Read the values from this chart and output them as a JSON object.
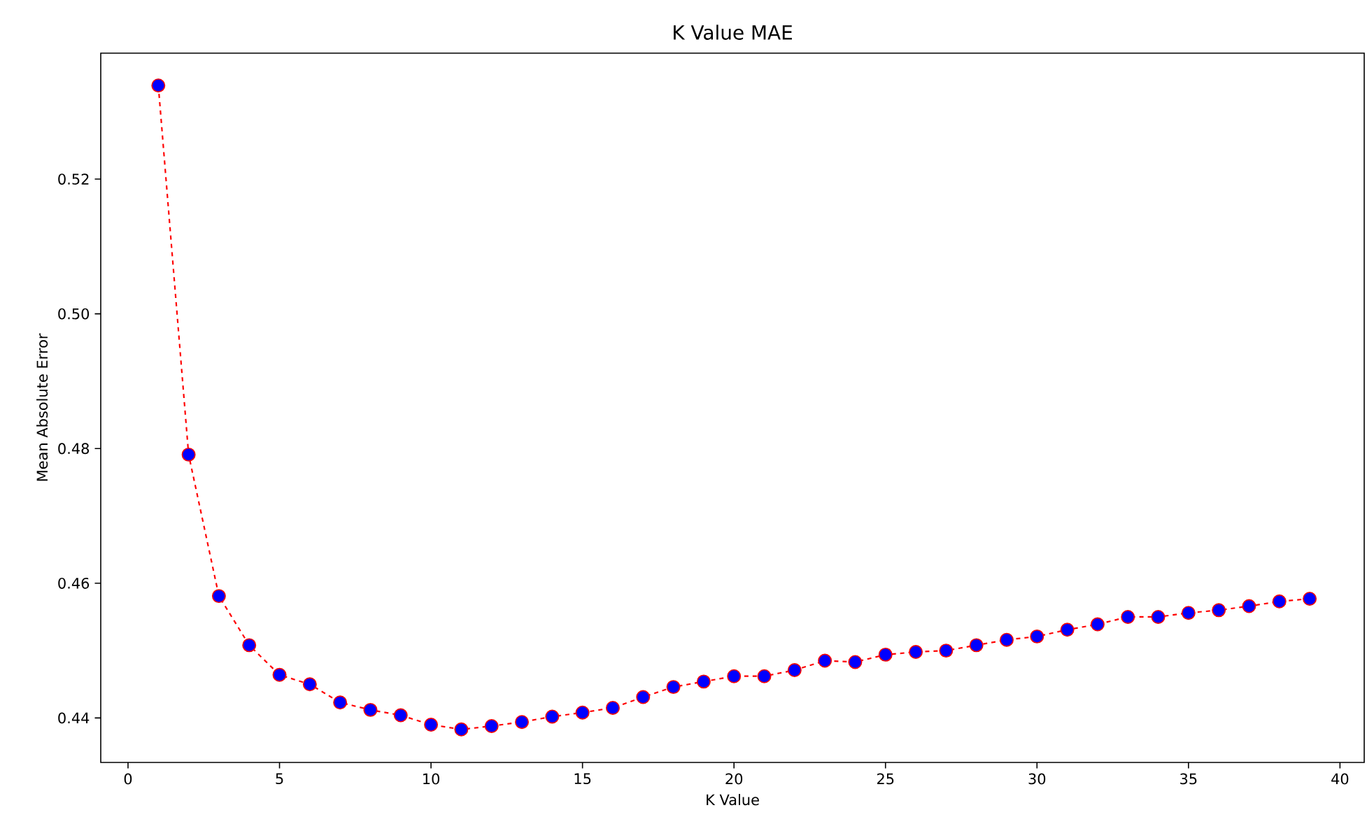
{
  "chart_data": {
    "type": "line",
    "title": "K Value MAE",
    "xlabel": "K Value",
    "ylabel": "Mean Absolute Error",
    "x": [
      1,
      2,
      3,
      4,
      5,
      6,
      7,
      8,
      9,
      10,
      11,
      12,
      13,
      14,
      15,
      16,
      17,
      18,
      19,
      20,
      21,
      22,
      23,
      24,
      25,
      26,
      27,
      28,
      29,
      30,
      31,
      32,
      33,
      34,
      35,
      36,
      37,
      38,
      39
    ],
    "series": [
      {
        "color": "#ff0000",
        "values": [
          0.5339,
          0.4791,
          0.4581,
          0.4508,
          0.4464,
          0.445,
          0.4423,
          0.4412,
          0.4404,
          0.439,
          0.4383,
          0.4388,
          0.4394,
          0.4402,
          0.4408,
          0.4415,
          0.4431,
          0.4446,
          0.4454,
          0.4462,
          0.4462,
          0.4471,
          0.4485,
          0.4483,
          0.4494,
          0.4498,
          0.45,
          0.4508,
          0.4516,
          0.4521,
          0.4531,
          0.4539,
          0.455,
          0.455,
          0.4556,
          0.456,
          0.4566,
          0.4573,
          0.4577
        ]
      }
    ],
    "xlim": [
      -0.9,
      40.8
    ],
    "ylim": [
      0.4334,
      0.5387
    ],
    "xticks": [
      0,
      5,
      10,
      15,
      20,
      25,
      30,
      35,
      40
    ],
    "yticks": [
      0.44,
      0.46,
      0.48,
      {
        "value": 0.5,
        "label": "0.50"
      },
      0.52
    ],
    "marker": "circle",
    "line_style": "dashed"
  }
}
